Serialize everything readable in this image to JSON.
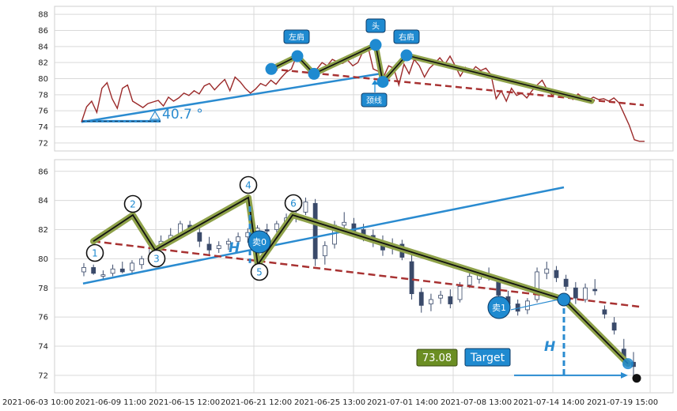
{
  "chart_data": [
    {
      "type": "line",
      "panel": "top",
      "ylim": [
        71,
        89
      ],
      "y_ticks": [
        "88",
        "86",
        "84",
        "82",
        "80",
        "78",
        "76",
        "74",
        "72"
      ],
      "grid": true,
      "series": [
        {
          "values": [
            74.6,
            76.5,
            77.2,
            75.8,
            78.8,
            79.5,
            77.5,
            76.3,
            78.8,
            79.2,
            77.2,
            76.8,
            76.4,
            76.9,
            77.1,
            77.3,
            76.6,
            77.7,
            77.2,
            77.6,
            78.2,
            77.9,
            78.5,
            78.1,
            79.1,
            79.4,
            78.6,
            79.3,
            79.9,
            78.5,
            80.2,
            79.6,
            78.8,
            78.2,
            78.7,
            79.4,
            79.1,
            79.8,
            79.3,
            80.1,
            80.8,
            81.2,
            82.8,
            82.1,
            81.3,
            81.1,
            81.2,
            82.0,
            81.6,
            82.4,
            82.1,
            81.9,
            82.3,
            81.6,
            82.0,
            83.4,
            83.9,
            81.2,
            80.9,
            80.2,
            81.6,
            81.3,
            79.2,
            81.8,
            80.6,
            82.4,
            81.6,
            80.2,
            81.3,
            81.9,
            82.6,
            81.8,
            82.8,
            81.6,
            80.3,
            81.4,
            80.7,
            81.5,
            81.0,
            81.3,
            80.5,
            77.5,
            78.5,
            77.2,
            78.8,
            77.9,
            78.2,
            77.6,
            78.5,
            79.2,
            79.8,
            78.6,
            77.9,
            78.3,
            77.8,
            78.0,
            77.4,
            78.1,
            77.6,
            77.3,
            77.7,
            77.4,
            77.5,
            77.2,
            77.6,
            77.0,
            75.6,
            74.2,
            72.4,
            72.2,
            72.2
          ]
        }
      ],
      "annotations": [
        {
          "label": "左肩",
          "value": 82.8
        },
        {
          "label": "头",
          "value": 84.2
        },
        {
          "label": "右肩",
          "value": 82.9
        },
        {
          "label": "颈线",
          "value": 79.6
        }
      ],
      "angle_label": "40.7 °"
    },
    {
      "type": "candlestick",
      "panel": "bottom",
      "ylim": [
        70.8,
        86.8
      ],
      "y_ticks": [
        "86",
        "84",
        "82",
        "80",
        "78",
        "76",
        "74",
        "72"
      ],
      "x_tick_labels": [
        "2021-06-03 10:00",
        "2021-06-09 11:00",
        "2021-06-15 12:00",
        "2021-06-21 12:00",
        "2021-06-25 13:00",
        "2021-07-01 14:00",
        "2021-07-08 13:00",
        "2021-07-14 14:00",
        "2021-07-19 15:00"
      ],
      "grid": true,
      "candles": [
        [
          79.1,
          79.7,
          78.8,
          79.4
        ],
        [
          79.4,
          79.6,
          78.9,
          79.0
        ],
        [
          78.8,
          79.2,
          78.6,
          78.9
        ],
        [
          79.0,
          79.6,
          78.8,
          79.3
        ],
        [
          79.3,
          79.8,
          79.0,
          79.1
        ],
        [
          79.2,
          79.9,
          78.9,
          79.7
        ],
        [
          79.6,
          80.2,
          79.3,
          80.0
        ],
        [
          80.1,
          81.1,
          79.9,
          80.9
        ],
        [
          81.0,
          81.6,
          80.6,
          81.2
        ],
        [
          81.3,
          82.1,
          81.0,
          81.6
        ],
        [
          81.7,
          82.6,
          81.4,
          82.4
        ],
        [
          82.3,
          82.6,
          81.7,
          81.9
        ],
        [
          81.8,
          82.2,
          80.8,
          81.2
        ],
        [
          81.0,
          81.5,
          80.3,
          80.6
        ],
        [
          80.7,
          81.2,
          80.4,
          80.9
        ],
        [
          81.0,
          81.4,
          80.6,
          81.2
        ],
        [
          81.2,
          81.8,
          80.9,
          81.5
        ],
        [
          81.5,
          82.1,
          81.1,
          81.8
        ],
        [
          81.9,
          82.3,
          81.4,
          82.1
        ],
        [
          82.0,
          82.4,
          81.6,
          81.9
        ],
        [
          82.0,
          82.6,
          81.8,
          82.4
        ],
        [
          82.5,
          83.1,
          82.2,
          82.8
        ],
        [
          82.8,
          83.4,
          82.5,
          83.1
        ],
        [
          83.2,
          84.2,
          83.0,
          83.9
        ],
        [
          83.8,
          84.1,
          79.5,
          80.0
        ],
        [
          80.2,
          81.2,
          79.6,
          80.9
        ],
        [
          81.0,
          82.6,
          80.7,
          82.3
        ],
        [
          82.3,
          83.2,
          82.0,
          82.5
        ],
        [
          82.4,
          82.8,
          81.6,
          81.9
        ],
        [
          82.0,
          82.4,
          81.2,
          81.5
        ],
        [
          81.6,
          82.0,
          80.8,
          81.2
        ],
        [
          81.2,
          81.6,
          80.2,
          80.6
        ],
        [
          80.8,
          81.4,
          80.3,
          81.0
        ],
        [
          81.0,
          81.3,
          79.9,
          80.1
        ],
        [
          79.8,
          80.3,
          77.2,
          77.6
        ],
        [
          77.7,
          78.0,
          76.3,
          76.8
        ],
        [
          76.9,
          77.6,
          76.4,
          77.2
        ],
        [
          77.3,
          77.8,
          76.9,
          77.5
        ],
        [
          77.4,
          77.9,
          76.6,
          76.9
        ],
        [
          77.2,
          78.4,
          77.0,
          78.1
        ],
        [
          78.2,
          79.0,
          78.0,
          78.8
        ],
        [
          78.6,
          79.2,
          78.3,
          79.0
        ],
        [
          78.8,
          79.4,
          78.5,
          78.7
        ],
        [
          78.5,
          78.8,
          77.2,
          77.5
        ],
        [
          77.4,
          77.8,
          76.6,
          76.9
        ],
        [
          76.9,
          77.2,
          76.1,
          76.4
        ],
        [
          76.5,
          77.3,
          76.2,
          77.1
        ],
        [
          77.2,
          79.4,
          77.0,
          79.1
        ],
        [
          79.0,
          79.8,
          78.6,
          79.3
        ],
        [
          79.2,
          79.5,
          78.4,
          78.7
        ],
        [
          78.6,
          78.9,
          77.8,
          78.1
        ],
        [
          78.0,
          78.4,
          76.9,
          77.3
        ],
        [
          77.2,
          78.3,
          77.0,
          78.0
        ],
        [
          77.9,
          78.6,
          77.5,
          77.8
        ],
        [
          76.5,
          76.8,
          75.9,
          76.2
        ],
        [
          75.6,
          76.0,
          74.8,
          75.1
        ],
        [
          73.8,
          74.5,
          72.6,
          73.0
        ],
        [
          72.9,
          73.6,
          71.8,
          72.6
        ]
      ],
      "pattern_points": [
        {
          "label": "1",
          "value": 81.1
        },
        {
          "label": "2",
          "value": 83.0
        },
        {
          "label": "3",
          "value": 80.6
        },
        {
          "label": "4",
          "value": 84.2
        },
        {
          "label": "5",
          "value": 79.6
        },
        {
          "label": "6",
          "value": 83.0
        }
      ],
      "sell_markers": [
        {
          "label": "卖0",
          "value": 80.7
        },
        {
          "label": "卖1",
          "value": 76.5
        }
      ],
      "h_label": "H",
      "target": {
        "label": "Target",
        "value": "73.08"
      }
    }
  ],
  "colors": {
    "price_line": "#9b2a2a",
    "neckline": "#a83232",
    "trend": "#2a8bd0",
    "pattern_fill": "#8fa24a",
    "pattern_line": "#111111",
    "marker": "#1f8ad0",
    "target_green": "#6b8e23",
    "candle": "#3a4a6a",
    "grid": "#d9d9d9"
  }
}
